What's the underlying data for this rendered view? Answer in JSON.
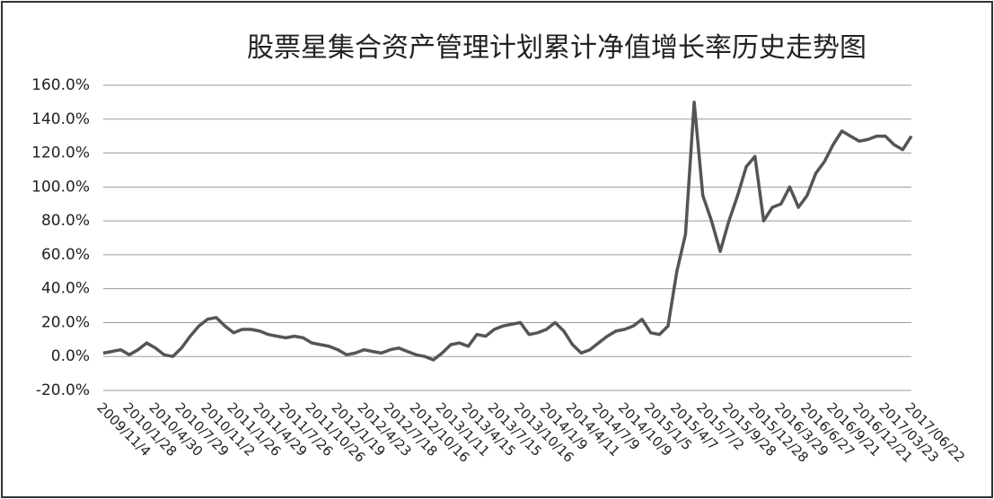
{
  "chart_data": {
    "type": "line",
    "title": "股票星集合资产管理计划累计净值增长率历史走势图",
    "categories": [
      "2009/11/4",
      null,
      null,
      "2010/1/28",
      null,
      null,
      "2010/4/30",
      null,
      null,
      "2010/7/29",
      null,
      null,
      "2010/11/2",
      null,
      null,
      "2011/1/26",
      null,
      null,
      "2011/4/29",
      null,
      null,
      "2011/7/26",
      null,
      null,
      "2011/10/26",
      null,
      null,
      "2012/1/19",
      null,
      null,
      "2012/4/23",
      null,
      null,
      "2012/7/18",
      null,
      null,
      "2012/10/16",
      null,
      null,
      "2013/1/11",
      null,
      null,
      "2013/4/15",
      null,
      null,
      "2013/7/15",
      null,
      null,
      "2013/10/16",
      null,
      null,
      "2014/1/9",
      null,
      null,
      "2014/4/11",
      null,
      null,
      "2014/7/9",
      null,
      null,
      "2014/10/9",
      null,
      null,
      "2015/1/5",
      null,
      null,
      "2015/4/7",
      null,
      null,
      "2015/7/2",
      null,
      null,
      "2015/9/28",
      null,
      null,
      "2015/12/28",
      null,
      null,
      "2016/3/29",
      null,
      null,
      "2016/6/27",
      null,
      null,
      "2016/9/21",
      null,
      null,
      "2016/12/21",
      null,
      null,
      "2017/03/23",
      null,
      null,
      "2017/06/22"
    ],
    "values": [
      2,
      3,
      4,
      1,
      4,
      8,
      5,
      1,
      0,
      5,
      12,
      18,
      22,
      23,
      18,
      14,
      16,
      16,
      15,
      13,
      12,
      11,
      12,
      11,
      8,
      7,
      6,
      4,
      1,
      2,
      4,
      3,
      2,
      4,
      5,
      3,
      1,
      0,
      -2,
      2,
      7,
      8,
      6,
      13,
      12,
      16,
      18,
      19,
      20,
      13,
      14,
      16,
      20,
      15,
      7,
      2,
      4,
      8,
      12,
      15,
      16,
      18,
      22,
      14,
      13,
      18,
      50,
      72,
      150,
      95,
      80,
      62,
      80,
      95,
      112,
      118,
      80,
      88,
      90,
      100,
      88,
      95,
      108,
      115,
      125,
      133,
      130,
      127,
      128,
      130,
      130,
      125,
      122,
      130
    ],
    "color": "#555555",
    "ylim": [
      -20,
      160
    ],
    "yticks": [
      {
        "value": -20,
        "label": "-20.0%"
      },
      {
        "value": 0,
        "label": "0.0%"
      },
      {
        "value": 20,
        "label": "20.0%"
      },
      {
        "value": 40,
        "label": "40.0%"
      },
      {
        "value": 60,
        "label": "60.0%"
      },
      {
        "value": 80,
        "label": "80.0%"
      },
      {
        "value": 100,
        "label": "100.0%"
      },
      {
        "value": 120,
        "label": "120.0%"
      },
      {
        "value": 140,
        "label": "140.0%"
      },
      {
        "value": 160,
        "label": "160.0%"
      }
    ],
    "grid": true
  }
}
